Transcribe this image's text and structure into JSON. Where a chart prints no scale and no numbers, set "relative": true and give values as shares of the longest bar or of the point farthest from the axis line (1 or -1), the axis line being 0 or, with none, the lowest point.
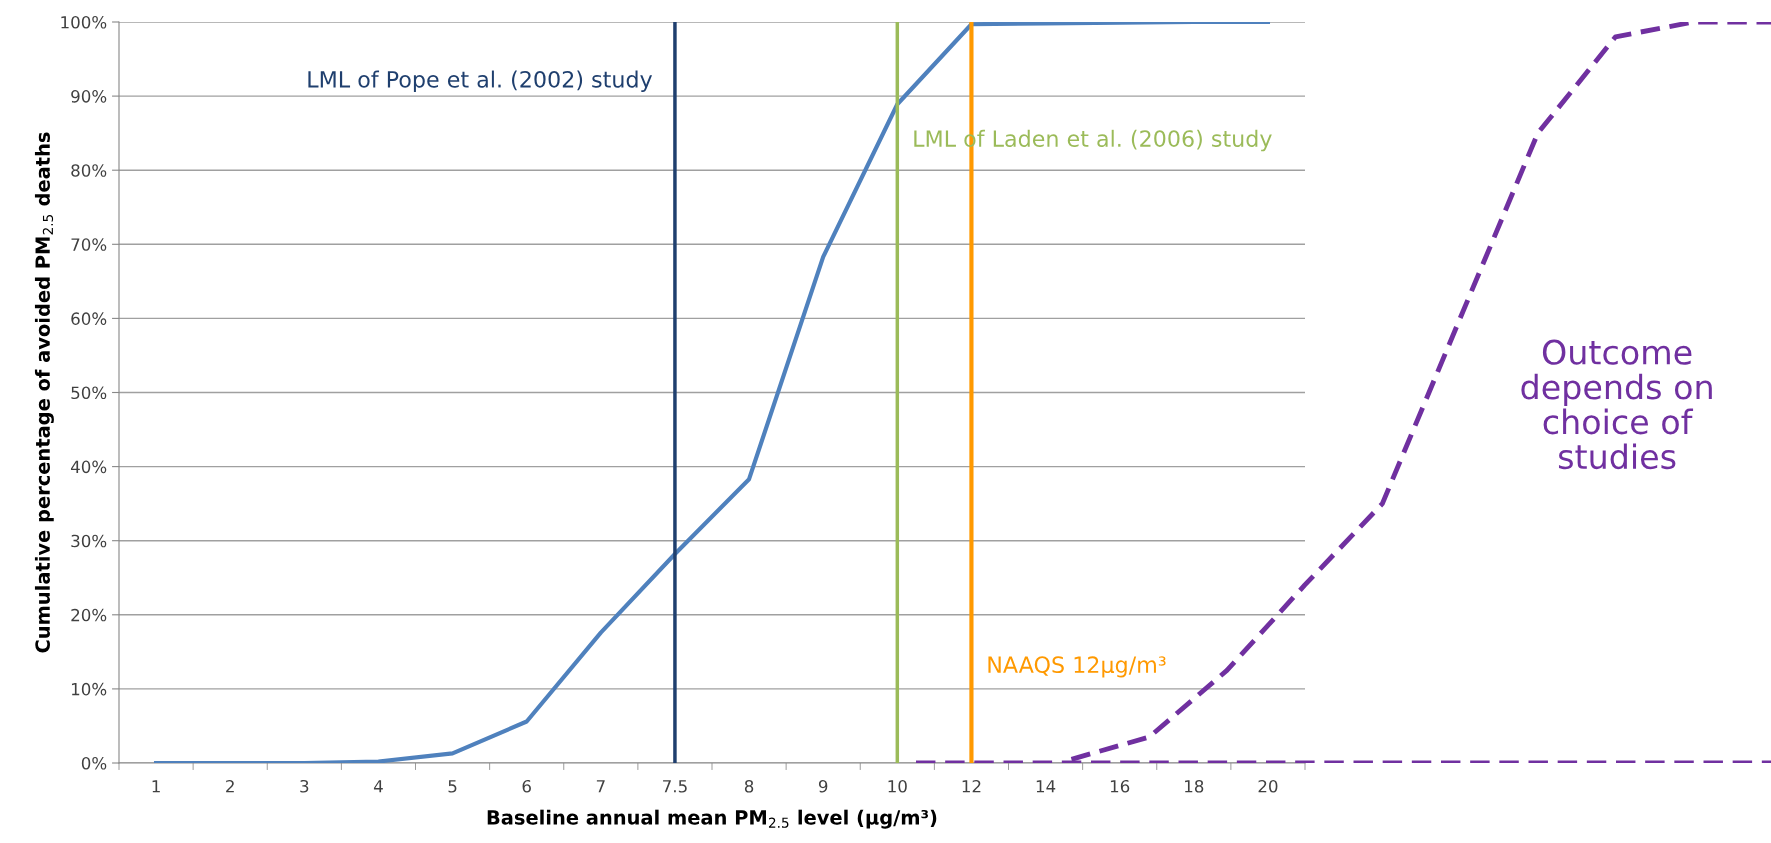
{
  "chart_data": [
    {
      "type": "line",
      "xlabel": "Baseline annual mean PM$_{2.5}$ level (µg/m³)",
      "ylabel": "Cumulative percentage of avoided PM$_{2.5}$ deaths",
      "categories": [
        "1",
        "2",
        "3",
        "4",
        "5",
        "6",
        "7",
        "7.5",
        "8",
        "9",
        "10",
        "12",
        "14",
        "16",
        "18",
        "20"
      ],
      "series": [
        {
          "color": "#4f81bd",
          "values": [
            0,
            0,
            0,
            0.2,
            1.3,
            5.6,
            17.6,
            28.2,
            38.3,
            68.3,
            88.9,
            99.7,
            99.8,
            99.9,
            100,
            100
          ]
        }
      ],
      "ylim": [
        0,
        100
      ],
      "yticks": [
        {
          "value": 0,
          "label": "0%"
        },
        {
          "value": 10,
          "label": "10%"
        },
        {
          "value": 20,
          "label": "20%"
        },
        {
          "value": 30,
          "label": "30%"
        },
        {
          "value": 40,
          "label": "40%"
        },
        {
          "value": 50,
          "label": "50%"
        },
        {
          "value": 60,
          "label": "60%"
        },
        {
          "value": 70,
          "label": "70%"
        },
        {
          "value": 80,
          "label": "80%"
        },
        {
          "value": 90,
          "label": "90%"
        },
        {
          "value": 100,
          "label": "100%"
        }
      ],
      "grid": "y",
      "marker": "none",
      "line_style": "solid",
      "ref_lines": [
        {
          "axis": "x",
          "value": "7.5",
          "color": "#1f3f6e"
        },
        {
          "axis": "x",
          "value": "10",
          "color": "#9bbb59"
        },
        {
          "axis": "x",
          "value": "12",
          "color": "#ff9900"
        }
      ],
      "annotations": [
        {
          "text": "LML of Pope et al. (2002) study",
          "x": "7.5",
          "y": 92
        },
        {
          "text": "LML of Laden et al. (2006) study",
          "x": "10",
          "y": 84
        },
        {
          "text": "NAAQS 12µg/m³",
          "x": "12",
          "y": 13
        }
      ]
    },
    {
      "type": "line",
      "relative": true,
      "categories": [
        null,
        null,
        null,
        null,
        null,
        null,
        null,
        null,
        null,
        null,
        null,
        null
      ],
      "series": [
        {
          "color": "#7030a0",
          "values": [
            null,
            null,
            0.005,
            0.035,
            0.125,
            0.24,
            0.35,
            0.6,
            0.85,
            0.98,
            1,
            1
          ]
        },
        {
          "color": "#7030a0",
          "values": [
            0,
            0,
            0,
            0,
            0,
            0,
            0,
            0,
            0,
            0,
            0,
            0
          ]
        }
      ],
      "marker": "none",
      "line_style": "dashed",
      "annotations": [
        "Outcome\ndepends on\nchoice of\nstudies"
      ]
    }
  ]
}
